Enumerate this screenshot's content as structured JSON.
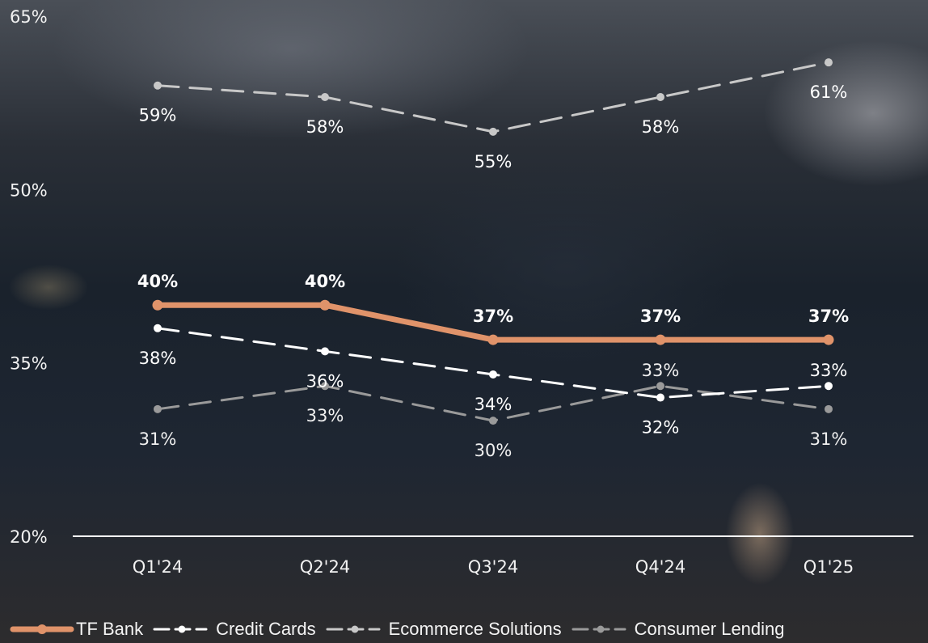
{
  "chart_data": {
    "type": "line",
    "categories": [
      "Q1'24",
      "Q2'24",
      "Q3'24",
      "Q4'24",
      "Q1'25"
    ],
    "ylim": [
      20,
      65
    ],
    "yticks": [
      "65%",
      "50%",
      "35%",
      "20%"
    ],
    "ytick_values": [
      65,
      50,
      35,
      20
    ],
    "grid": false,
    "legend_position": "bottom",
    "series": [
      {
        "name": "TF Bank",
        "values": [
          40,
          40,
          37,
          37,
          37
        ],
        "labels": [
          "40%",
          "40%",
          "37%",
          "37%",
          "37%"
        ],
        "color": "#e0936a",
        "style": "solid",
        "label_bold": true,
        "label_position": "above"
      },
      {
        "name": "Credit Cards",
        "values": [
          38,
          36,
          34,
          32,
          33
        ],
        "labels": [
          "38%",
          "36%",
          "34%",
          "32%",
          "33%"
        ],
        "color": "#ffffff",
        "style": "dashed",
        "label_bold": false,
        "label_position": [
          "below",
          "below",
          "below",
          "below",
          "above"
        ]
      },
      {
        "name": "Ecommerce Solutions",
        "values": [
          59,
          58,
          55,
          58,
          61
        ],
        "labels": [
          "59%",
          "58%",
          "55%",
          "58%",
          "61%"
        ],
        "color": "#c8c8c8",
        "style": "dashed",
        "label_bold": false,
        "label_position": "below"
      },
      {
        "name": "Consumer Lending",
        "values": [
          31,
          33,
          30,
          33,
          31
        ],
        "labels": [
          "31%",
          "33%",
          "30%",
          "33%",
          "31%"
        ],
        "color": "#9a9a9a",
        "style": "dashed",
        "label_bold": false,
        "label_position": [
          "below",
          "below",
          "below",
          "above",
          "below"
        ]
      }
    ]
  }
}
